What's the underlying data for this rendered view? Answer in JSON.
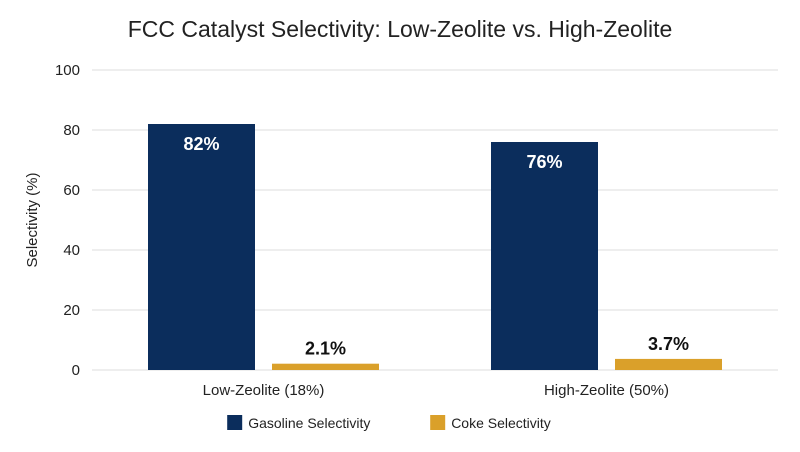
{
  "chart_data": {
    "type": "bar",
    "title": "FCC Catalyst Selectivity: Low-Zeolite vs. High-Zeolite",
    "xlabel": "",
    "ylabel": "Selectivity (%)",
    "categories": [
      "Low-Zeolite (18%)",
      "High-Zeolite (50%)"
    ],
    "series": [
      {
        "name": "Gasoline Selectivity",
        "values": [
          82,
          76
        ],
        "labels": [
          "82%",
          "76%"
        ],
        "color": "#0b2d5c",
        "label_position": "inside-top",
        "label_color": "#ffffff"
      },
      {
        "name": "Coke Selectivity",
        "values": [
          2.1,
          3.7
        ],
        "labels": [
          "2.1%",
          "3.7%"
        ],
        "color": "#daa02a",
        "label_position": "above",
        "label_color": "#111111"
      }
    ],
    "yticks": [
      0,
      20,
      40,
      60,
      80,
      100
    ],
    "ylim": [
      0,
      100
    ],
    "grid": true,
    "legend_position": "bottom-center"
  }
}
